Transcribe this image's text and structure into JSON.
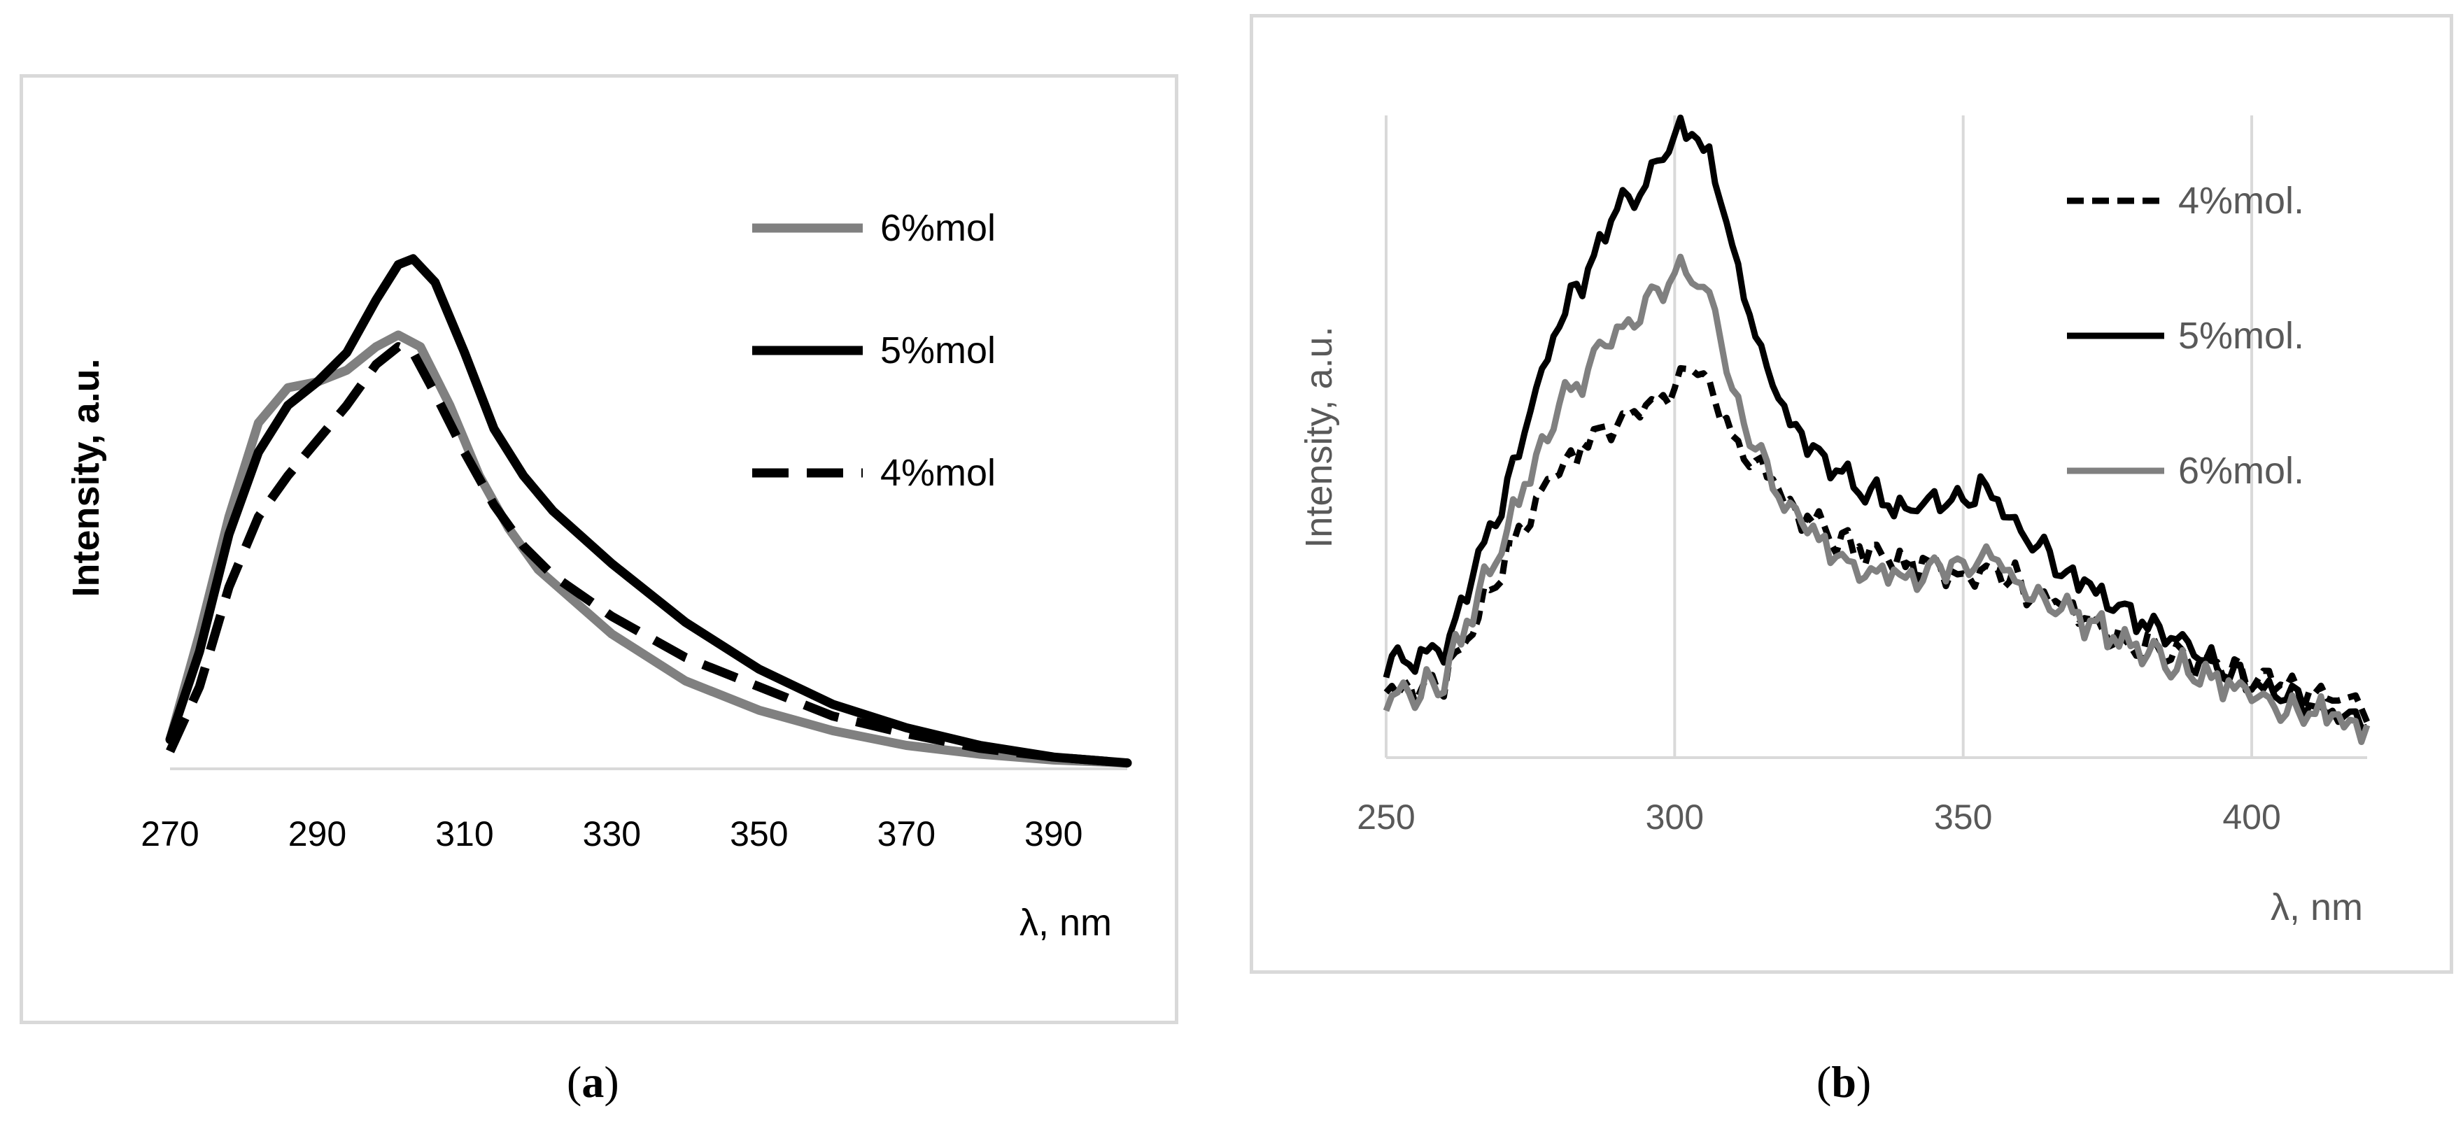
{
  "chart_data": [
    {
      "type": "line",
      "panel": "a",
      "caption_letter": "a",
      "xlabel": "λ, nm",
      "ylabel": "Intensity, a.u.",
      "xlim": [
        270,
        400
      ],
      "ylim": [
        0,
        1
      ],
      "xticks": [
        "270",
        "290",
        "310",
        "330",
        "350",
        "370",
        "390"
      ],
      "grid": false,
      "legend_position": "top-right",
      "series": [
        {
          "name": "6%mol",
          "color": "#808080",
          "dash": "solid",
          "x": [
            270,
            274,
            278,
            282,
            286,
            290,
            294,
            298,
            301,
            304,
            308,
            312,
            316,
            320,
            330,
            340,
            350,
            360,
            370,
            380,
            390,
            400
          ],
          "y": [
            0.05,
            0.23,
            0.43,
            0.59,
            0.65,
            0.66,
            0.68,
            0.72,
            0.74,
            0.72,
            0.62,
            0.5,
            0.41,
            0.34,
            0.23,
            0.15,
            0.1,
            0.065,
            0.04,
            0.025,
            0.015,
            0.01
          ]
        },
        {
          "name": "5%mol",
          "color": "#000000",
          "dash": "solid",
          "x": [
            270,
            274,
            278,
            282,
            286,
            290,
            294,
            298,
            301,
            303,
            306,
            310,
            314,
            318,
            322,
            330,
            340,
            350,
            360,
            370,
            380,
            390,
            400
          ],
          "y": [
            0.05,
            0.2,
            0.4,
            0.54,
            0.62,
            0.66,
            0.71,
            0.8,
            0.86,
            0.87,
            0.83,
            0.71,
            0.58,
            0.5,
            0.44,
            0.35,
            0.25,
            0.17,
            0.11,
            0.07,
            0.04,
            0.02,
            0.01
          ]
        },
        {
          "name": "4%mol",
          "color": "#000000",
          "dash": "dashed",
          "x": [
            270,
            274,
            278,
            282,
            286,
            290,
            294,
            298,
            301,
            303,
            306,
            310,
            314,
            318,
            322,
            330,
            340,
            350,
            360,
            370,
            380,
            390,
            400
          ],
          "y": [
            0.03,
            0.14,
            0.31,
            0.43,
            0.5,
            0.56,
            0.62,
            0.69,
            0.72,
            0.71,
            0.64,
            0.54,
            0.45,
            0.38,
            0.33,
            0.26,
            0.19,
            0.14,
            0.09,
            0.06,
            0.035,
            0.02,
            0.01
          ]
        }
      ]
    },
    {
      "type": "line",
      "panel": "b",
      "caption_letter": "b",
      "xlabel": "λ, nm",
      "ylabel": "Intensity, a.u.",
      "xlim": [
        250,
        420
      ],
      "ylim": [
        0,
        1
      ],
      "xticks": [
        "250",
        "300",
        "350",
        "400"
      ],
      "xtick_values": [
        250,
        300,
        350,
        400
      ],
      "grid": true,
      "legend_position": "top-right",
      "series": [
        {
          "name": "4%mol.",
          "color": "#000000",
          "dash": "dashed",
          "x": [
            250,
            260,
            270,
            280,
            290,
            295,
            300,
            303,
            306,
            310,
            315,
            320,
            325,
            330,
            340,
            350,
            355,
            360,
            370,
            380,
            390,
            400,
            410,
            420
          ],
          "y": [
            0.1,
            0.12,
            0.3,
            0.46,
            0.52,
            0.55,
            0.58,
            0.6,
            0.57,
            0.5,
            0.45,
            0.39,
            0.36,
            0.33,
            0.3,
            0.29,
            0.3,
            0.27,
            0.22,
            0.18,
            0.15,
            0.12,
            0.1,
            0.08
          ]
        },
        {
          "name": "5%mol.",
          "color": "#000000",
          "dash": "solid",
          "x": [
            250,
            260,
            270,
            280,
            290,
            295,
            300,
            303,
            306,
            310,
            315,
            320,
            325,
            330,
            340,
            350,
            353,
            356,
            360,
            370,
            380,
            390,
            400,
            410,
            420
          ],
          "y": [
            0.15,
            0.17,
            0.4,
            0.68,
            0.85,
            0.9,
            0.97,
            0.98,
            0.94,
            0.8,
            0.62,
            0.52,
            0.47,
            0.43,
            0.39,
            0.4,
            0.42,
            0.4,
            0.35,
            0.28,
            0.22,
            0.16,
            0.12,
            0.08,
            0.06
          ]
        },
        {
          "name": "6%mol.",
          "color": "#808080",
          "dash": "solid",
          "x": [
            250,
            260,
            270,
            280,
            290,
            295,
            300,
            303,
            306,
            310,
            315,
            320,
            325,
            330,
            340,
            350,
            355,
            360,
            370,
            380,
            390,
            400,
            410,
            420
          ],
          "y": [
            0.09,
            0.12,
            0.34,
            0.55,
            0.66,
            0.7,
            0.75,
            0.76,
            0.72,
            0.58,
            0.46,
            0.38,
            0.34,
            0.31,
            0.28,
            0.3,
            0.31,
            0.27,
            0.22,
            0.17,
            0.13,
            0.1,
            0.07,
            0.05
          ]
        }
      ]
    }
  ]
}
